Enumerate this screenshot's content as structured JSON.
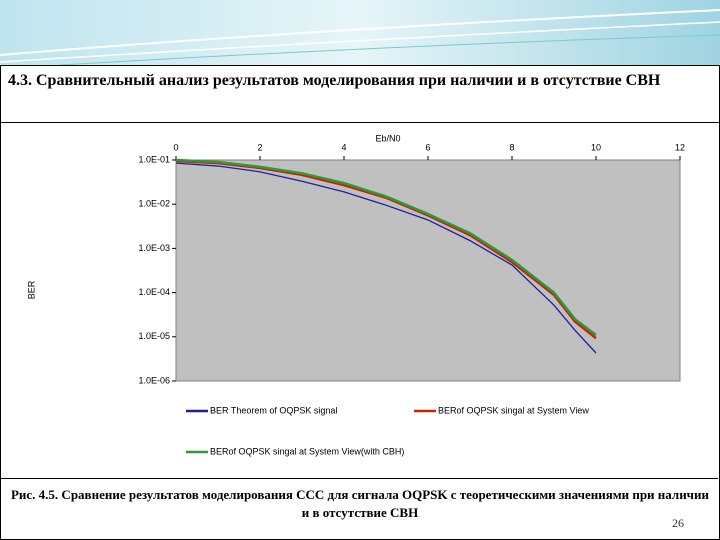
{
  "slide": {
    "heading": "4.3. Сравнительный анализ результатов моделирования при наличии и в отсутствие СВН",
    "caption": "Рис. 4.5. Сравнение результатов моделирования ССС для сигнала OQPSK с теоретическими значениями при наличии и в отсутствие СВН",
    "page_number": "26"
  },
  "chart_data": {
    "type": "line",
    "x_label": "Eb/N0",
    "y_label": "BER",
    "log_y": true,
    "x": [
      0,
      1,
      2,
      3,
      4,
      5,
      6,
      7,
      8,
      9,
      9.5,
      10
    ],
    "xlim": [
      0,
      12
    ],
    "xticks": [
      0,
      2,
      4,
      6,
      8,
      10,
      12
    ],
    "ylim": [
      1e-06,
      0.1
    ],
    "yticks": [
      {
        "value": 0.1,
        "label": "1.0E-01"
      },
      {
        "value": 0.01,
        "label": "1.0E-02"
      },
      {
        "value": 0.001,
        "label": "1.0E-03"
      },
      {
        "value": 0.0001,
        "label": "1.0E-04"
      },
      {
        "value": 1e-05,
        "label": "1.0E-05"
      },
      {
        "value": 1e-06,
        "label": "1.0E-06"
      }
    ],
    "series": [
      {
        "name": "BER Theorem of OQPSK signal",
        "color": "#1f1f9f",
        "values": [
          0.085,
          0.073,
          0.054,
          0.033,
          0.019,
          0.0095,
          0.0044,
          0.0015,
          0.00042,
          5.2e-05,
          1.4e-05,
          4.3e-06
        ]
      },
      {
        "name": "BERof OQPSK singal at System View",
        "color": "#cc2200",
        "values": [
          0.095,
          0.085,
          0.066,
          0.046,
          0.027,
          0.014,
          0.0056,
          0.002,
          0.00049,
          8.9e-05,
          2.2e-05,
          9.3e-06
        ]
      },
      {
        "name": "BERof OQPSK singal at System View(with CBH)",
        "color": "#2a9a3a",
        "values": [
          0.1,
          0.09,
          0.07,
          0.05,
          0.03,
          0.015,
          0.006,
          0.0022,
          0.00055,
          0.0001,
          2.5e-05,
          1.1e-05
        ]
      }
    ]
  }
}
